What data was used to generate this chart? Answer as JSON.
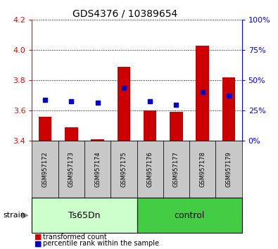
{
  "title": "GDS4376 / 10389654",
  "samples": [
    "GSM957172",
    "GSM957173",
    "GSM957174",
    "GSM957175",
    "GSM957176",
    "GSM957177",
    "GSM957178",
    "GSM957179"
  ],
  "bar_base": 3.4,
  "bar_tops": [
    3.56,
    3.49,
    3.41,
    3.89,
    3.6,
    3.59,
    4.03,
    3.82
  ],
  "blue_y": [
    3.67,
    3.66,
    3.65,
    3.75,
    3.66,
    3.64,
    3.72,
    3.7
  ],
  "ylim": [
    3.4,
    4.2
  ],
  "yticks_left": [
    3.4,
    3.6,
    3.8,
    4.0,
    4.2
  ],
  "yticks_right_pct": [
    0,
    25,
    50,
    75,
    100
  ],
  "bar_color": "#cc0000",
  "blue_color": "#0000cc",
  "strain_label": "strain",
  "legend_red": "transformed count",
  "legend_blue": "percentile rank within the sample",
  "group_ts_color": "#ccffcc",
  "group_ctrl_color": "#44cc44",
  "tick_area_color": "#c8c8c8",
  "title_fontsize": 10,
  "tick_label_fontsize": 6,
  "ytick_fontsize": 8,
  "group_label_fontsize": 9,
  "legend_fontsize": 7
}
